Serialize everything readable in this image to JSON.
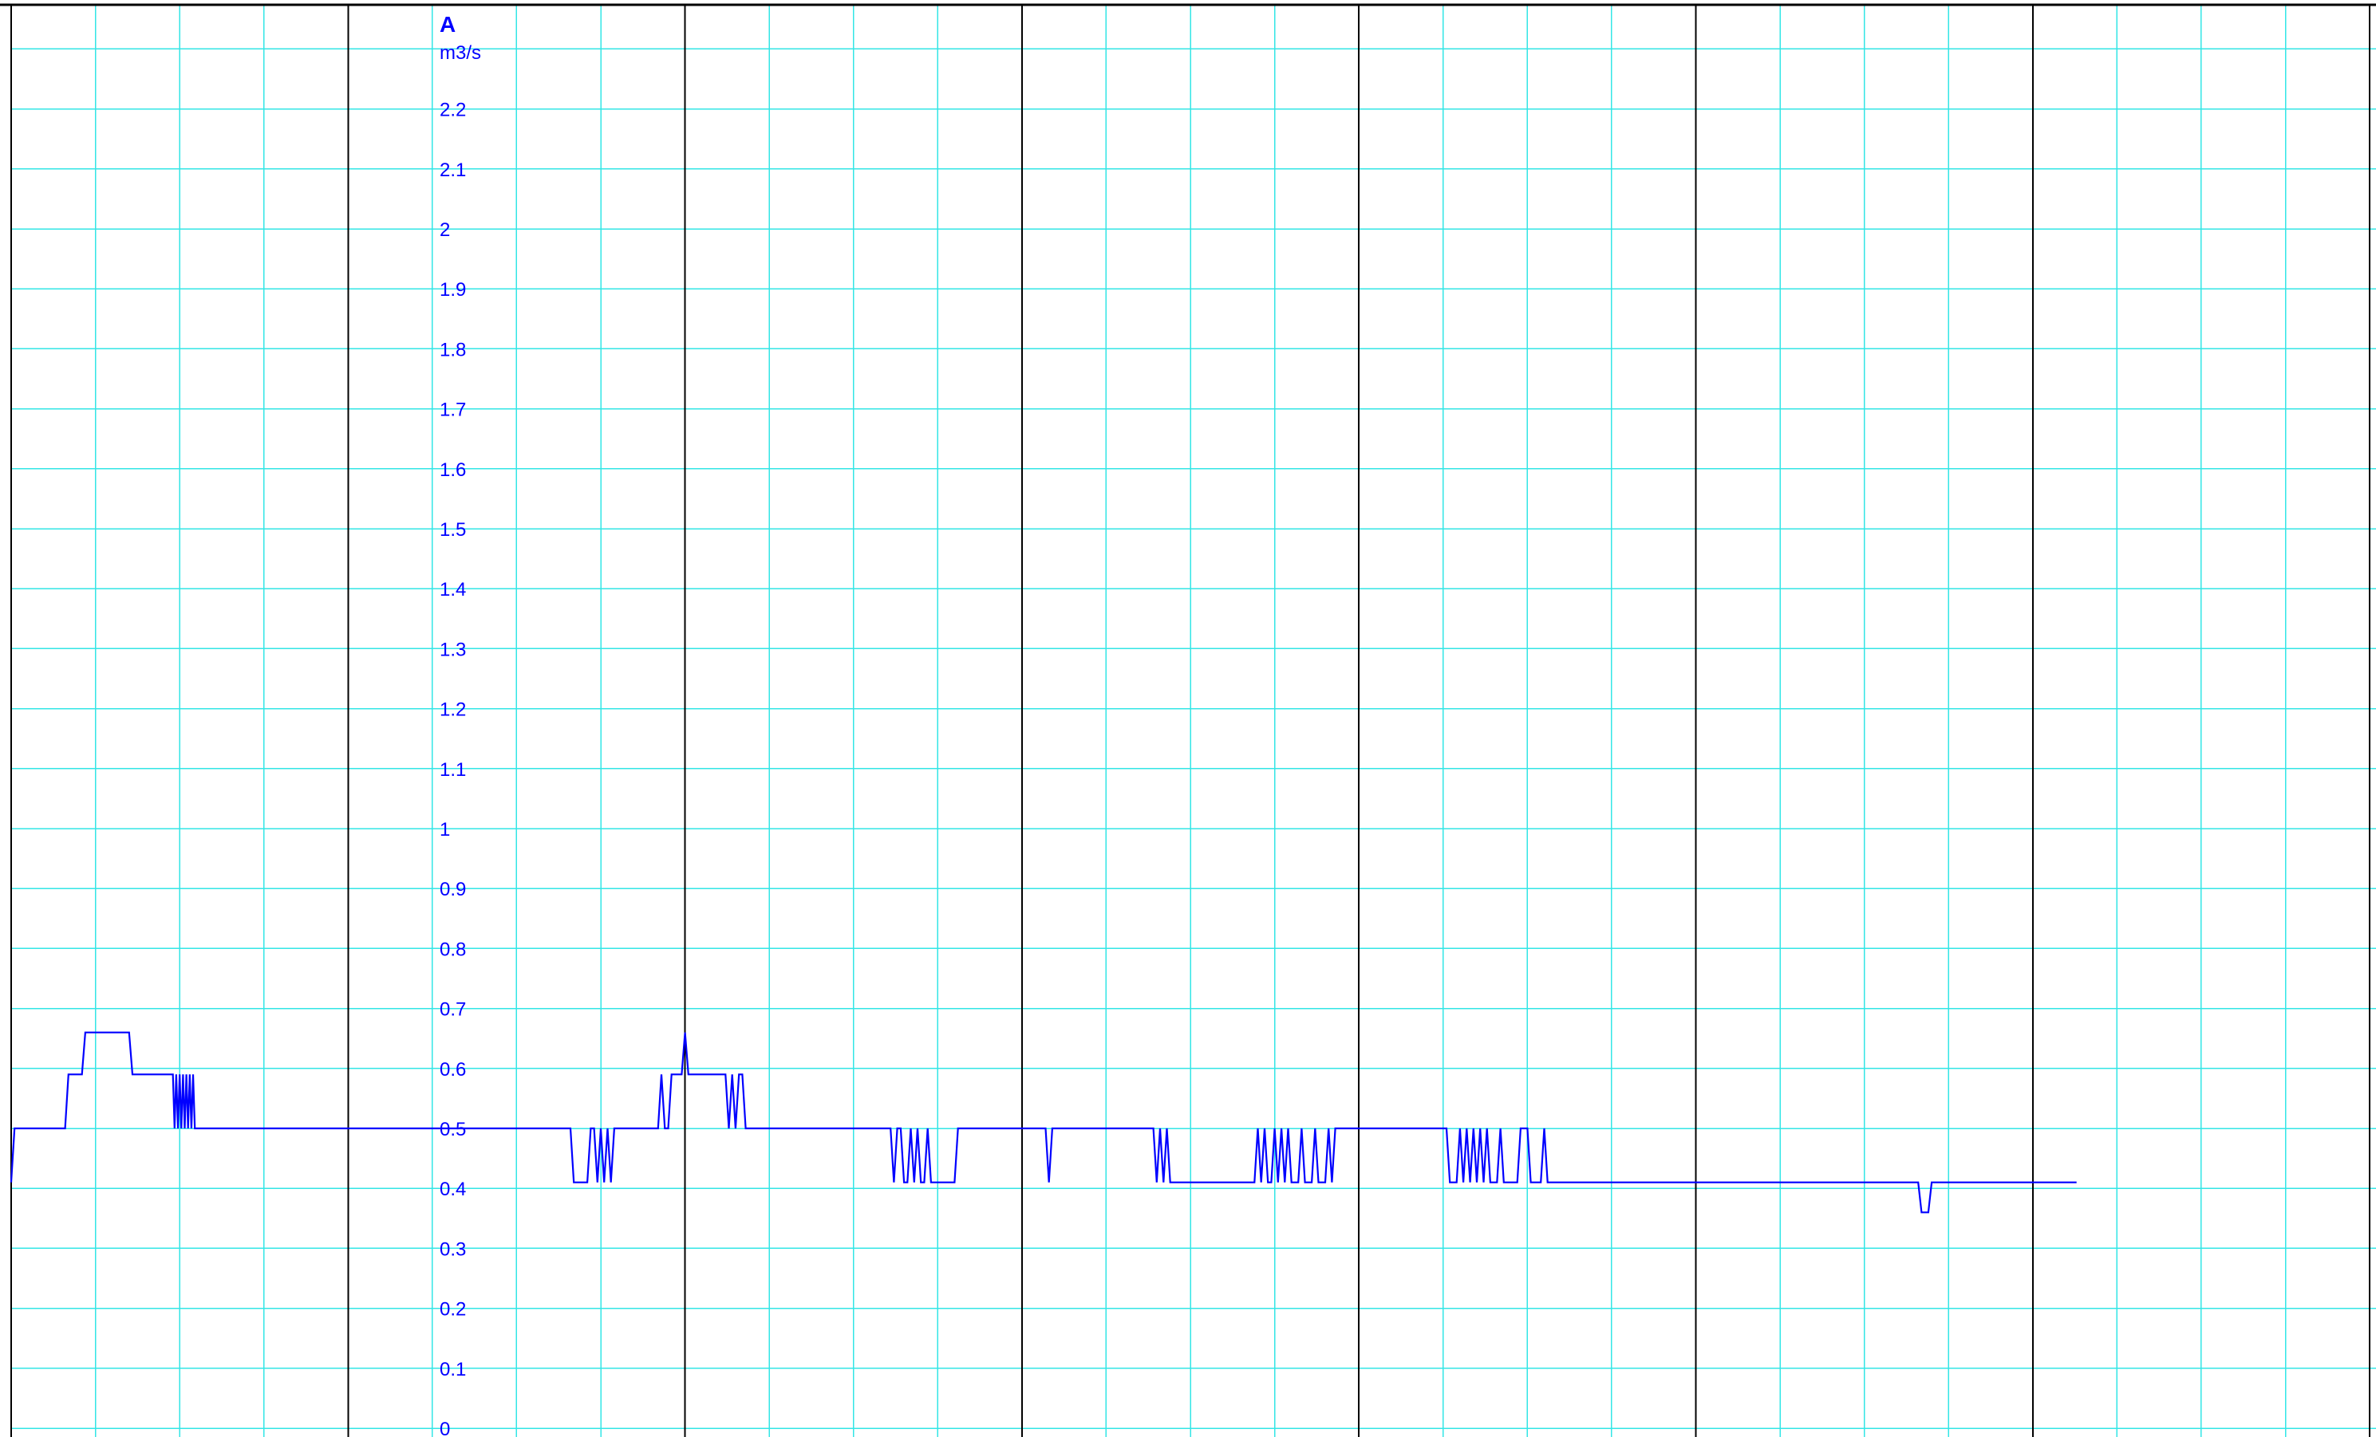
{
  "chart_data": {
    "type": "line",
    "series_label": "A",
    "unit": "m3/s",
    "ylim": [
      0,
      2.3
    ],
    "y_ticks": [
      0,
      0.1,
      0.2,
      0.3,
      0.4,
      0.5,
      0.6,
      0.7,
      0.8,
      0.9,
      1,
      1.1,
      1.2,
      1.3,
      1.4,
      1.5,
      1.6,
      1.7,
      1.8,
      1.9,
      2,
      2.1,
      2.2
    ],
    "y_tick_labels": [
      "0",
      "0.1",
      "0.2",
      "0.3",
      "0.4",
      "0.5",
      "0.6",
      "0.7",
      "0.8",
      "0.9",
      "1",
      "1.1",
      "1.2",
      "1.3",
      "1.4",
      "1.5",
      "1.6",
      "1.7",
      "1.8",
      "1.9",
      "2",
      "2.1",
      "2.2"
    ],
    "xlim": [
      0,
      7
    ],
    "grid": true,
    "series": [
      {
        "color": "#0000ff",
        "points": [
          [
            0,
            0.41
          ],
          [
            0.01,
            0.5
          ],
          [
            0.16,
            0.5
          ],
          [
            0.17,
            0.59
          ],
          [
            0.21,
            0.59
          ],
          [
            0.22,
            0.66
          ],
          [
            0.35,
            0.66
          ],
          [
            0.36,
            0.59
          ],
          [
            0.48,
            0.59
          ],
          [
            0.485,
            0.5
          ],
          [
            0.49,
            0.59
          ],
          [
            0.495,
            0.5
          ],
          [
            0.5,
            0.59
          ],
          [
            0.505,
            0.5
          ],
          [
            0.51,
            0.59
          ],
          [
            0.515,
            0.5
          ],
          [
            0.52,
            0.59
          ],
          [
            0.525,
            0.5
          ],
          [
            0.53,
            0.59
          ],
          [
            0.535,
            0.5
          ],
          [
            0.54,
            0.59
          ],
          [
            0.545,
            0.5
          ],
          [
            1.66,
            0.5
          ],
          [
            1.67,
            0.41
          ],
          [
            1.71,
            0.41
          ],
          [
            1.72,
            0.5
          ],
          [
            1.73,
            0.5
          ],
          [
            1.74,
            0.41
          ],
          [
            1.75,
            0.5
          ],
          [
            1.76,
            0.41
          ],
          [
            1.77,
            0.5
          ],
          [
            1.78,
            0.41
          ],
          [
            1.79,
            0.5
          ],
          [
            1.92,
            0.5
          ],
          [
            1.93,
            0.59
          ],
          [
            1.94,
            0.5
          ],
          [
            1.95,
            0.5
          ],
          [
            1.96,
            0.59
          ],
          [
            1.99,
            0.59
          ],
          [
            2.0,
            0.66
          ],
          [
            2.01,
            0.59
          ],
          [
            2.12,
            0.59
          ],
          [
            2.13,
            0.5
          ],
          [
            2.14,
            0.59
          ],
          [
            2.15,
            0.5
          ],
          [
            2.16,
            0.59
          ],
          [
            2.17,
            0.59
          ],
          [
            2.18,
            0.5
          ],
          [
            2.61,
            0.5
          ],
          [
            2.62,
            0.41
          ],
          [
            2.63,
            0.5
          ],
          [
            2.64,
            0.5
          ],
          [
            2.65,
            0.41
          ],
          [
            2.66,
            0.41
          ],
          [
            2.67,
            0.5
          ],
          [
            2.68,
            0.41
          ],
          [
            2.69,
            0.5
          ],
          [
            2.7,
            0.41
          ],
          [
            2.71,
            0.41
          ],
          [
            2.72,
            0.5
          ],
          [
            2.73,
            0.41
          ],
          [
            2.8,
            0.41
          ],
          [
            2.81,
            0.5
          ],
          [
            3.07,
            0.5
          ],
          [
            3.08,
            0.41
          ],
          [
            3.09,
            0.5
          ],
          [
            3.39,
            0.5
          ],
          [
            3.4,
            0.41
          ],
          [
            3.41,
            0.5
          ],
          [
            3.42,
            0.41
          ],
          [
            3.43,
            0.5
          ],
          [
            3.44,
            0.41
          ],
          [
            3.69,
            0.41
          ],
          [
            3.7,
            0.5
          ],
          [
            3.71,
            0.41
          ],
          [
            3.72,
            0.5
          ],
          [
            3.73,
            0.41
          ],
          [
            3.74,
            0.41
          ],
          [
            3.75,
            0.5
          ],
          [
            3.76,
            0.41
          ],
          [
            3.77,
            0.5
          ],
          [
            3.78,
            0.41
          ],
          [
            3.79,
            0.5
          ],
          [
            3.8,
            0.41
          ],
          [
            3.81,
            0.41
          ],
          [
            3.82,
            0.41
          ],
          [
            3.83,
            0.5
          ],
          [
            3.84,
            0.41
          ],
          [
            3.86,
            0.41
          ],
          [
            3.87,
            0.5
          ],
          [
            3.88,
            0.41
          ],
          [
            3.9,
            0.41
          ],
          [
            3.91,
            0.5
          ],
          [
            3.92,
            0.41
          ],
          [
            3.93,
            0.5
          ],
          [
            3.94,
            0.5
          ],
          [
            4.26,
            0.5
          ],
          [
            4.27,
            0.41
          ],
          [
            4.29,
            0.41
          ],
          [
            4.3,
            0.5
          ],
          [
            4.31,
            0.41
          ],
          [
            4.32,
            0.5
          ],
          [
            4.33,
            0.41
          ],
          [
            4.34,
            0.5
          ],
          [
            4.35,
            0.41
          ],
          [
            4.36,
            0.5
          ],
          [
            4.37,
            0.41
          ],
          [
            4.38,
            0.5
          ],
          [
            4.39,
            0.41
          ],
          [
            4.41,
            0.41
          ],
          [
            4.42,
            0.5
          ],
          [
            4.43,
            0.41
          ],
          [
            4.47,
            0.41
          ],
          [
            4.48,
            0.5
          ],
          [
            4.5,
            0.5
          ],
          [
            4.51,
            0.41
          ],
          [
            4.54,
            0.41
          ],
          [
            4.55,
            0.5
          ],
          [
            4.56,
            0.41
          ],
          [
            5.66,
            0.41
          ],
          [
            5.67,
            0.36
          ],
          [
            5.69,
            0.36
          ],
          [
            5.7,
            0.41
          ],
          [
            6.13,
            0.41
          ]
        ]
      }
    ]
  },
  "colors": {
    "minor_grid": "#33e6e6",
    "major_grid": "#000000",
    "series_line": "#0000ff",
    "label_text": "#0000ff"
  }
}
